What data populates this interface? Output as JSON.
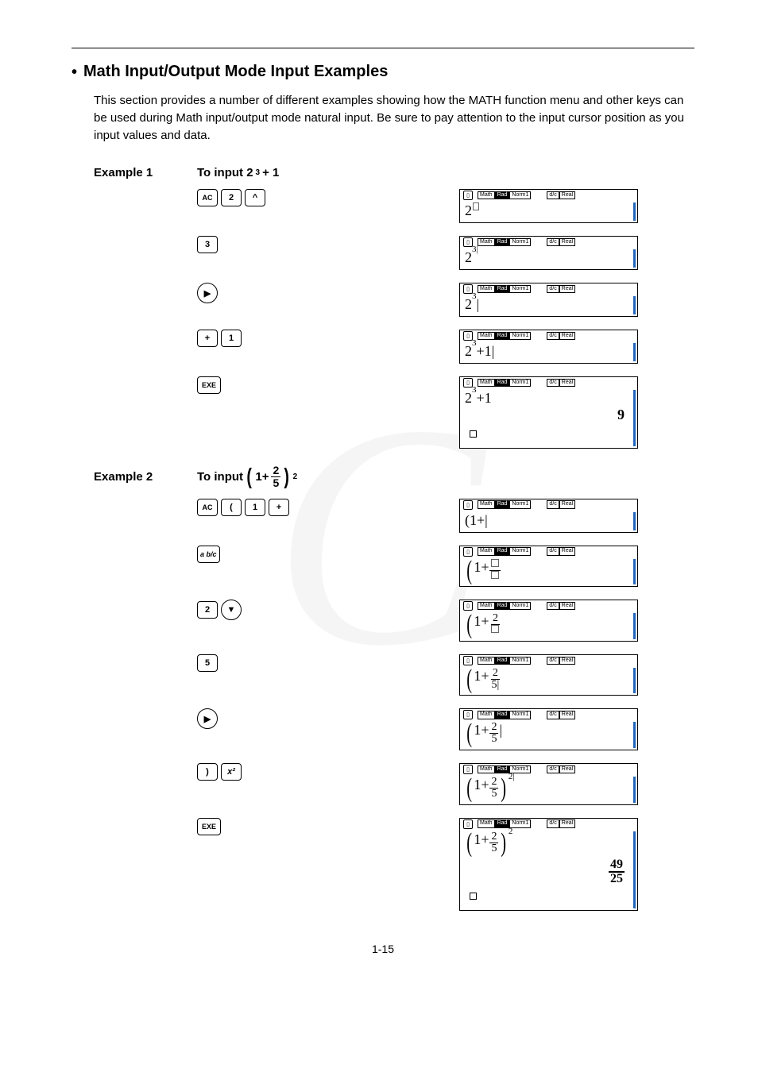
{
  "section": {
    "bullet": "•",
    "title": "Math Input/Output Mode Input Examples",
    "intro": "This section provides a number of different examples showing how the MATH function menu and other keys can be used during Math input/output mode natural input. Be sure to pay attention to the input cursor position as you input values and data."
  },
  "screen_header": {
    "badges_left": [
      "Math",
      "Rad",
      "Norm1"
    ],
    "badges_right": [
      "d/c",
      "Real"
    ]
  },
  "example1": {
    "label": "Example 1",
    "task_prefix": "To input 2",
    "task_sup": "3",
    "task_suffix": " + 1",
    "steps": [
      {
        "keys": [
          {
            "t": "AC",
            "cls": "key-ac"
          },
          {
            "t": "2"
          },
          {
            "t": "^"
          }
        ],
        "screen": {
          "type": "s1a"
        }
      },
      {
        "keys": [
          {
            "t": "3"
          }
        ],
        "screen": {
          "type": "s1b"
        }
      },
      {
        "keys": [
          {
            "t": "▶",
            "cls": "key-round"
          }
        ],
        "screen": {
          "type": "s1c"
        }
      },
      {
        "keys": [
          {
            "t": "+"
          },
          {
            "t": "1"
          }
        ],
        "screen": {
          "type": "s1d"
        }
      },
      {
        "keys": [
          {
            "t": "EXE",
            "cls": "key-exe"
          }
        ],
        "screen": {
          "type": "s1e",
          "result": "9"
        }
      }
    ]
  },
  "example2": {
    "label": "Example 2",
    "task_prefix": "To input ",
    "task_paren_open": "(",
    "task_one_plus": "1 +",
    "task_frac_n": "2",
    "task_frac_d": "5",
    "task_paren_close": ")",
    "task_sup": "2",
    "steps": [
      {
        "keys": [
          {
            "t": "AC",
            "cls": "key-ac"
          },
          {
            "t": "("
          },
          {
            "t": "1"
          },
          {
            "t": "+"
          }
        ],
        "screen": {
          "type": "s2a"
        }
      },
      {
        "keys": [
          {
            "t": "a b/c",
            "cls": "key-frac"
          }
        ],
        "screen": {
          "type": "s2b"
        }
      },
      {
        "keys": [
          {
            "t": "2"
          },
          {
            "t": "▼",
            "cls": "key-round"
          }
        ],
        "screen": {
          "type": "s2c"
        }
      },
      {
        "keys": [
          {
            "t": "5"
          }
        ],
        "screen": {
          "type": "s2d"
        }
      },
      {
        "keys": [
          {
            "t": "▶",
            "cls": "key-round"
          }
        ],
        "screen": {
          "type": "s2e"
        }
      },
      {
        "keys": [
          {
            "t": ")"
          },
          {
            "t": "x²",
            "cls": "key-sq"
          }
        ],
        "screen": {
          "type": "s2f"
        }
      },
      {
        "keys": [
          {
            "t": "EXE",
            "cls": "key-exe"
          }
        ],
        "screen": {
          "type": "s2g",
          "result_n": "49",
          "result_d": "25"
        }
      }
    ]
  },
  "page_number": "1-15",
  "colors": {
    "accent_bar": "#2266bb",
    "text": "#000000",
    "bg": "#ffffff"
  }
}
